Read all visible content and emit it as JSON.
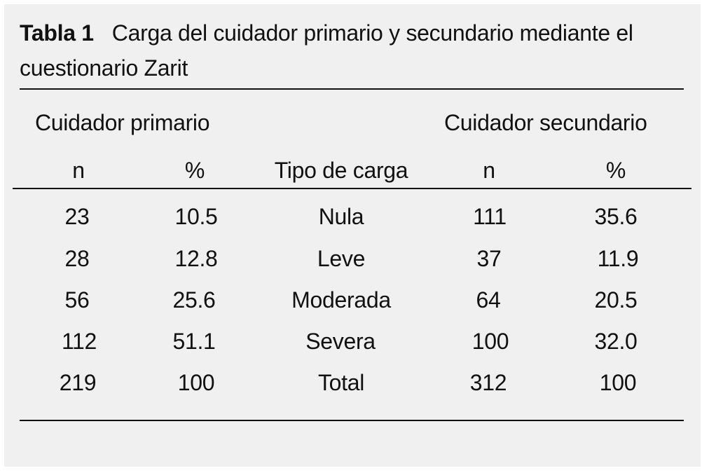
{
  "caption": {
    "label": "Tabla 1",
    "title": "Carga del cuidador primario y secundario mediante el cuestionario Zarit"
  },
  "header": {
    "group_left": "Cuidador primario",
    "group_right": "Cuidador secundario",
    "columns": [
      "n",
      "%",
      "Tipo de carga",
      "n",
      "%"
    ]
  },
  "rows": [
    [
      "23",
      "10.5",
      "Nula",
      "111",
      "35.6"
    ],
    [
      "28",
      "12.8",
      "Leve",
      "37",
      "11.9"
    ],
    [
      "56",
      "25.6",
      "Moderada",
      "64",
      "20.5"
    ],
    [
      "112",
      "51.1",
      "Severa",
      "100",
      "32.0"
    ],
    [
      "219",
      "100",
      "Total",
      "312",
      "100"
    ]
  ]
}
